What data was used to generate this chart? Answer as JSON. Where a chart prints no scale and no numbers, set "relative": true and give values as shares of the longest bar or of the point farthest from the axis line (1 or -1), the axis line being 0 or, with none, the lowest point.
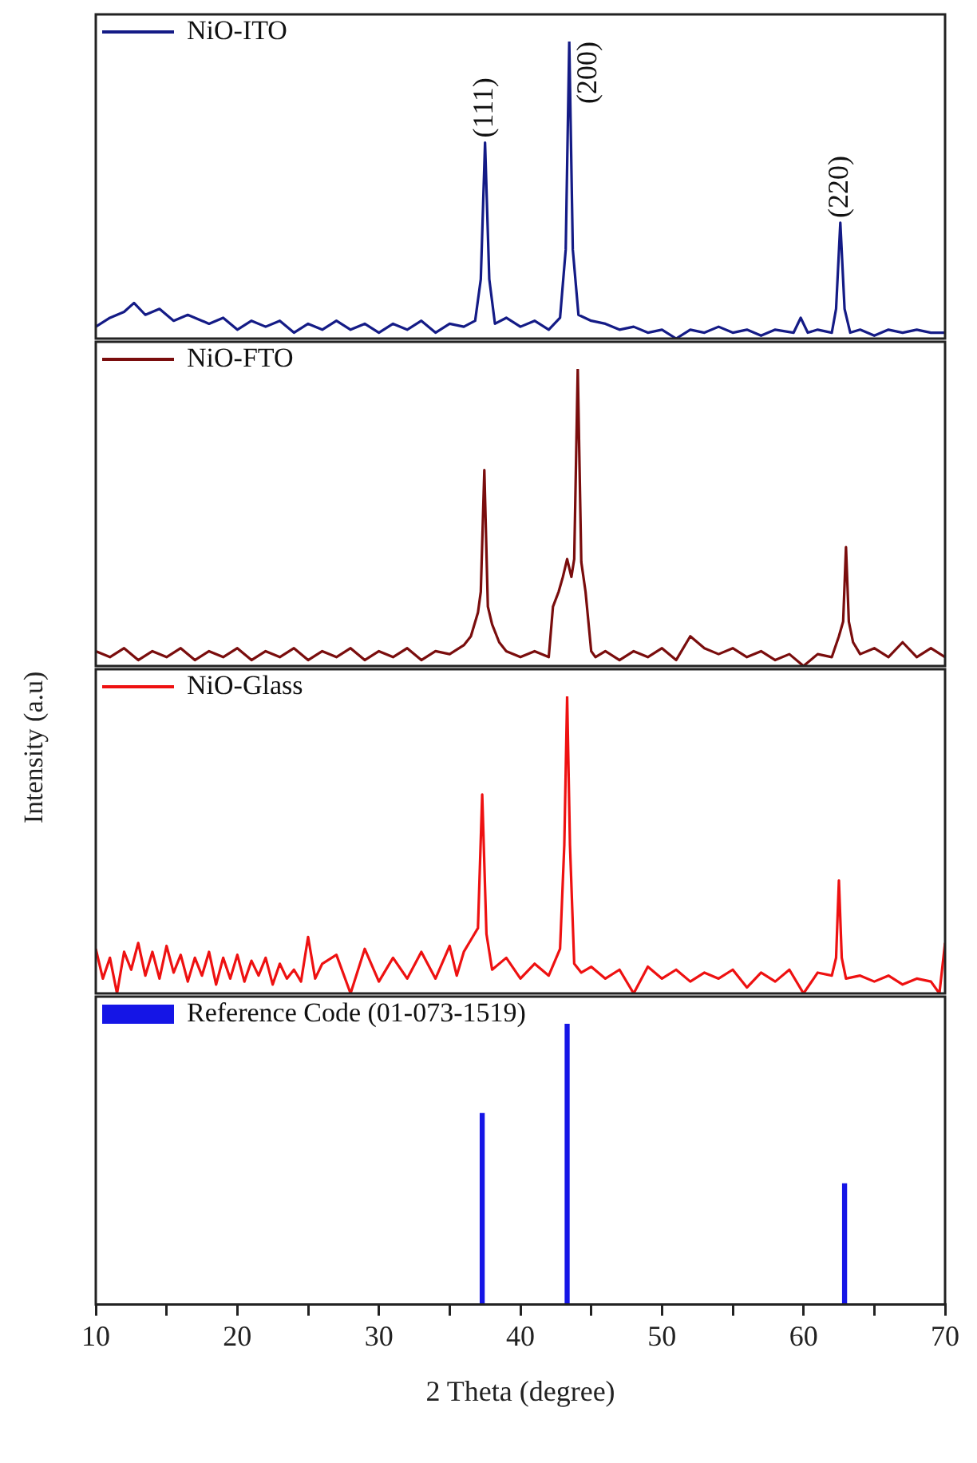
{
  "chart_data": [
    {
      "type": "line",
      "relative": true,
      "xlim": [
        10,
        70
      ],
      "tick_labels": false,
      "legend": "top left",
      "marker": "none",
      "line_style": "solid",
      "annotations": [
        {
          "text": "(111)",
          "x": 37.5,
          "y": 0.66
        },
        {
          "text": "(200)",
          "x": 43.45,
          "y": 1
        },
        {
          "text": "(220)",
          "x": 62.6,
          "y": 0.39
        }
      ],
      "series": [
        {
          "name": "NiO-ITO",
          "color": "#141b86",
          "x": [
            10,
            11,
            12,
            12.7,
            13.5,
            14.5,
            15.5,
            16.5,
            18,
            19,
            20,
            21,
            22,
            23,
            24,
            25,
            26,
            27,
            28,
            29,
            30,
            31,
            32,
            33,
            34,
            35,
            36,
            36.8,
            37.2,
            37.5,
            37.8,
            38.2,
            39,
            40,
            41,
            42,
            42.8,
            43.2,
            43.45,
            43.7,
            44.1,
            45,
            46,
            47,
            48,
            49,
            50,
            51,
            52,
            53,
            54,
            55,
            56,
            57,
            58,
            59.3,
            59.8,
            60.3,
            61,
            62,
            62.3,
            62.6,
            62.9,
            63.3,
            64,
            65,
            66,
            67,
            68,
            69,
            70
          ],
          "values": [
            0.04,
            0.07,
            0.09,
            0.12,
            0.08,
            0.1,
            0.06,
            0.08,
            0.05,
            0.07,
            0.03,
            0.06,
            0.04,
            0.06,
            0.02,
            0.05,
            0.03,
            0.06,
            0.03,
            0.05,
            0.02,
            0.05,
            0.03,
            0.06,
            0.02,
            0.05,
            0.04,
            0.06,
            0.2,
            0.66,
            0.2,
            0.05,
            0.07,
            0.04,
            0.06,
            0.03,
            0.07,
            0.3,
            1,
            0.3,
            0.08,
            0.06,
            0.05,
            0.03,
            0.04,
            0.02,
            0.03,
            0,
            0.03,
            0.02,
            0.04,
            0.02,
            0.03,
            0.01,
            0.03,
            0.02,
            0.07,
            0.02,
            0.03,
            0.02,
            0.1,
            0.39,
            0.1,
            0.02,
            0.03,
            0.01,
            0.03,
            0.02,
            0.03,
            0.02,
            0.02
          ]
        }
      ]
    },
    {
      "type": "line",
      "relative": true,
      "xlim": [
        10,
        70
      ],
      "tick_labels": false,
      "legend": "top left",
      "marker": "none",
      "line_style": "solid",
      "series": [
        {
          "name": "NiO-FTO",
          "color": "#7a0d0d",
          "x": [
            10,
            11,
            12,
            13,
            14,
            15,
            16,
            17,
            18,
            19,
            20,
            21,
            22,
            23,
            24,
            25,
            26,
            27,
            28,
            29,
            30,
            31,
            32,
            33,
            34,
            35,
            36,
            36.5,
            37,
            37.2,
            37.45,
            37.7,
            38,
            38.5,
            39,
            40,
            41,
            42,
            42.3,
            42.7,
            43,
            43.3,
            43.6,
            43.8,
            44.05,
            44.3,
            44.6,
            45,
            45.3,
            46,
            47,
            48,
            49,
            50,
            51,
            52,
            53,
            54,
            55,
            56,
            57,
            58,
            59,
            60,
            61,
            62,
            62.5,
            62.8,
            63,
            63.2,
            63.5,
            64,
            65,
            66,
            67,
            68,
            69,
            70
          ],
          "values": [
            0.05,
            0.03,
            0.06,
            0.02,
            0.05,
            0.03,
            0.06,
            0.02,
            0.05,
            0.03,
            0.06,
            0.02,
            0.05,
            0.03,
            0.06,
            0.02,
            0.05,
            0.03,
            0.06,
            0.02,
            0.05,
            0.03,
            0.06,
            0.02,
            0.05,
            0.04,
            0.07,
            0.1,
            0.18,
            0.25,
            0.66,
            0.2,
            0.14,
            0.08,
            0.05,
            0.03,
            0.05,
            0.03,
            0.2,
            0.25,
            0.3,
            0.36,
            0.3,
            0.36,
            1,
            0.35,
            0.25,
            0.05,
            0.03,
            0.05,
            0.02,
            0.05,
            0.03,
            0.06,
            0.02,
            0.1,
            0.06,
            0.04,
            0.06,
            0.03,
            0.05,
            0.02,
            0.04,
            0,
            0.04,
            0.03,
            0.1,
            0.15,
            0.4,
            0.15,
            0.08,
            0.04,
            0.06,
            0.03,
            0.08,
            0.03,
            0.06,
            0.03
          ]
        }
      ]
    },
    {
      "type": "line",
      "relative": true,
      "ylabel": "Intensity (a.u)",
      "xlim": [
        10,
        70
      ],
      "tick_labels": false,
      "legend": "top left",
      "marker": "none",
      "line_style": "solid",
      "series": [
        {
          "name": "NiO-Glass",
          "color": "#ee1111",
          "x": [
            10,
            10.5,
            11,
            11.5,
            12,
            12.5,
            13,
            13.5,
            14,
            14.5,
            15,
            15.5,
            16,
            16.5,
            17,
            17.5,
            18,
            18.5,
            19,
            19.5,
            20,
            20.5,
            21,
            21.5,
            22,
            22.5,
            23,
            23.5,
            24,
            24.5,
            25,
            25.5,
            26,
            27,
            28,
            29,
            30,
            31,
            32,
            33,
            34,
            35,
            35.5,
            36,
            36.5,
            37,
            37.3,
            37.6,
            38,
            39,
            40,
            41,
            42,
            42.8,
            43.1,
            43.3,
            43.5,
            43.8,
            44.3,
            45,
            46,
            47,
            48,
            49,
            50,
            51,
            52,
            53,
            54,
            55,
            56,
            57,
            58,
            59,
            60,
            61,
            62,
            62.3,
            62.5,
            62.7,
            63,
            64,
            65,
            66,
            67,
            68,
            69,
            69.6,
            70
          ],
          "values": [
            0.15,
            0.05,
            0.12,
            0.0,
            0.14,
            0.08,
            0.17,
            0.06,
            0.14,
            0.05,
            0.16,
            0.07,
            0.13,
            0.04,
            0.12,
            0.06,
            0.14,
            0.03,
            0.12,
            0.05,
            0.13,
            0.04,
            0.11,
            0.06,
            0.12,
            0.03,
            0.1,
            0.05,
            0.08,
            0.04,
            0.19,
            0.05,
            0.1,
            0.13,
            0.0,
            0.15,
            0.04,
            0.12,
            0.05,
            0.14,
            0.05,
            0.16,
            0.06,
            0.14,
            0.18,
            0.22,
            0.67,
            0.2,
            0.08,
            0.12,
            0.05,
            0.1,
            0.06,
            0.15,
            0.5,
            1,
            0.5,
            0.1,
            0.07,
            0.09,
            0.05,
            0.08,
            0.0,
            0.09,
            0.05,
            0.08,
            0.04,
            0.07,
            0.05,
            0.08,
            0.02,
            0.07,
            0.04,
            0.08,
            0.0,
            0.07,
            0.06,
            0.12,
            0.38,
            0.12,
            0.05,
            0.06,
            0.04,
            0.06,
            0.03,
            0.05,
            0.04,
            0.0,
            0.17
          ]
        }
      ]
    },
    {
      "type": "bar",
      "relative": true,
      "xlim": [
        10,
        70
      ],
      "xticks": [
        10,
        {
          "value": 15,
          "label": null
        },
        20,
        {
          "value": 25,
          "label": null
        },
        30,
        {
          "value": 35,
          "label": null
        },
        40,
        {
          "value": 45,
          "label": null
        },
        50,
        {
          "value": 55,
          "label": null
        },
        60,
        {
          "value": 65,
          "label": null
        },
        70
      ],
      "xlabel": "2 Theta (degree)",
      "tick_labels": "x",
      "legend": "top left",
      "series": [
        {
          "name": "Reference Code (01-073-1519)",
          "color": "#1515e6",
          "x": [
            37.3,
            43.3,
            62.9
          ],
          "values": [
            0.68,
            1,
            0.43
          ]
        }
      ]
    }
  ]
}
